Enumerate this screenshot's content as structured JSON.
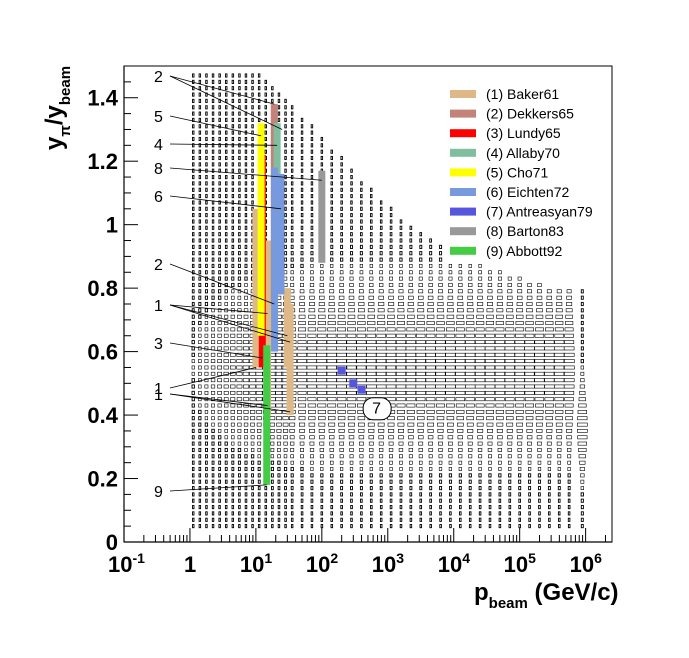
{
  "chart_data": {
    "type": "heatmap",
    "title": "",
    "x_axis": {
      "label_main": "p",
      "label_sub": "beam",
      "label_unit": " (GeV/c)",
      "scale": "log",
      "range_log10": [
        -1.0,
        6.4
      ],
      "tick_base": "10",
      "tick_exponents": [
        "-1",
        "0",
        "1",
        "2",
        "3",
        "4",
        "5",
        "6"
      ],
      "tick_plain": {
        "0": "1",
        "1": "10",
        "2": "10",
        "3": "10"
      }
    },
    "y_axis": {
      "label_main": "y",
      "label_sub1": "π",
      "label_mid": "/y",
      "label_sub2": "beam",
      "range": [
        0,
        1.5
      ],
      "ticks": [
        "0",
        "0.2",
        "0.4",
        "0.6",
        "0.8",
        "1",
        "1.2",
        "1.4"
      ]
    },
    "background_grid": {
      "description": "box-size histogram of simulated pion rapidity coverage",
      "columns_log10p": [
        0.05,
        0.15,
        0.25,
        0.35,
        0.45,
        0.55,
        0.65,
        0.75,
        0.85,
        0.95,
        1.05,
        1.15,
        1.25,
        1.35,
        1.45,
        1.55,
        1.7,
        1.85,
        2.0,
        2.15,
        2.3,
        2.45,
        2.6,
        2.75,
        2.9,
        3.05,
        3.2,
        3.35,
        3.5,
        3.65,
        3.8,
        3.95,
        4.1,
        4.25,
        4.4,
        4.55,
        4.7,
        4.85,
        5.0,
        5.15,
        5.3,
        5.45,
        5.6,
        5.75,
        5.95
      ],
      "ymax_per_column": [
        1.48,
        1.48,
        1.48,
        1.48,
        1.48,
        1.48,
        1.48,
        1.48,
        1.48,
        1.48,
        1.48,
        1.46,
        1.44,
        1.42,
        1.4,
        1.38,
        1.35,
        1.32,
        1.29,
        1.25,
        1.22,
        1.18,
        1.15,
        1.12,
        1.09,
        1.06,
        1.03,
        1.0,
        0.98,
        0.96,
        0.94,
        0.92,
        0.9,
        0.89,
        0.88,
        0.87,
        0.86,
        0.85,
        0.84,
        0.83,
        0.82,
        0.81,
        0.8,
        0.8,
        0.8
      ],
      "ymin": 0.05,
      "peak_y": 0.55
    },
    "series": [
      {
        "id": "1",
        "name": "(1) Baker61",
        "color": "#DEB887",
        "bands": [
          {
            "x": 10,
            "y": [
              0.55,
              1.05
            ]
          },
          {
            "x": 15,
            "y": [
              0.4,
              0.95
            ]
          },
          {
            "x": 30,
            "y": [
              0.55,
              0.8
            ]
          },
          {
            "x": 33,
            "y": [
              0.4,
              0.75
            ]
          }
        ]
      },
      {
        "id": "2",
        "name": "(2) Dekkers65",
        "color": "#C48378",
        "bands": [
          {
            "x": 19,
            "y": [
              0.75,
              1.38
            ]
          }
        ]
      },
      {
        "id": "3",
        "name": "(3) Lundy65",
        "color": "#FF0000",
        "bands": [
          {
            "x": 12.5,
            "y": [
              0.55,
              1.22
            ]
          }
        ]
      },
      {
        "id": "4",
        "name": "(4) Allaby70",
        "color": "#7FBFA0",
        "bands": [
          {
            "x": 21,
            "y": [
              0.95,
              1.32
            ]
          }
        ]
      },
      {
        "id": "5",
        "name": "(5) Cho71",
        "color": "#FFFF00",
        "bands": [
          {
            "x": 12,
            "y": [
              0.65,
              1.32
            ]
          }
        ]
      },
      {
        "id": "6",
        "name": "(6) Eichten72",
        "color": "#7799DD",
        "bands": [
          {
            "x": 19.2,
            "y": [
              0.6,
              1.18
            ]
          },
          {
            "x": 24,
            "y": [
              0.78,
              1.16
            ]
          }
        ]
      },
      {
        "id": "7",
        "name": "(7) Antreasyan79",
        "color": "#5555DD",
        "points": [
          {
            "x": 200,
            "y": 0.54
          },
          {
            "x": 300,
            "y": 0.5
          },
          {
            "x": 400,
            "y": 0.48
          }
        ]
      },
      {
        "id": "8",
        "name": "(8) Barton83",
        "color": "#999999",
        "bands": [
          {
            "x": 100,
            "y": [
              0.88,
              1.17
            ]
          }
        ]
      },
      {
        "id": "9",
        "name": "(9) Abbott92",
        "color": "#44CC44",
        "bands": [
          {
            "x": 14.6,
            "y": [
              0.18,
              0.62
            ]
          }
        ]
      }
    ],
    "annotations": [
      {
        "text": "2",
        "target": [
          {
            "x": 19,
            "y": 1.38
          },
          {
            "x": 25,
            "y": 1.3
          }
        ]
      },
      {
        "text": "5",
        "target": [
          {
            "x": 12,
            "y": 1.28
          }
        ]
      },
      {
        "text": "4",
        "target": [
          {
            "x": 21,
            "y": 1.25
          }
        ]
      },
      {
        "text": "8",
        "target": [
          {
            "x": 100,
            "y": 1.14
          }
        ]
      },
      {
        "text": "6",
        "target": [
          {
            "x": 24,
            "y": 1.05
          }
        ]
      },
      {
        "text": "2",
        "target": [
          {
            "x": 19,
            "y": 0.75
          }
        ]
      },
      {
        "text": "1",
        "target": [
          {
            "x": 15,
            "y": 0.72
          },
          {
            "x": 30,
            "y": 0.65
          },
          {
            "x": 33,
            "y": 0.63
          }
        ]
      },
      {
        "text": "3",
        "target": [
          {
            "x": 12.5,
            "y": 0.58
          }
        ]
      },
      {
        "text": "1",
        "target": [
          {
            "x": 10,
            "y": 0.55
          }
        ]
      },
      {
        "text": "1",
        "target": [
          {
            "x": 15,
            "y": 0.43
          },
          {
            "x": 33,
            "y": 0.41
          }
        ]
      },
      {
        "text": "9",
        "target": [
          {
            "x": 14.6,
            "y": 0.18
          }
        ]
      }
    ],
    "marker_label": {
      "text": "7",
      "x": 600,
      "y": 0.42
    }
  }
}
